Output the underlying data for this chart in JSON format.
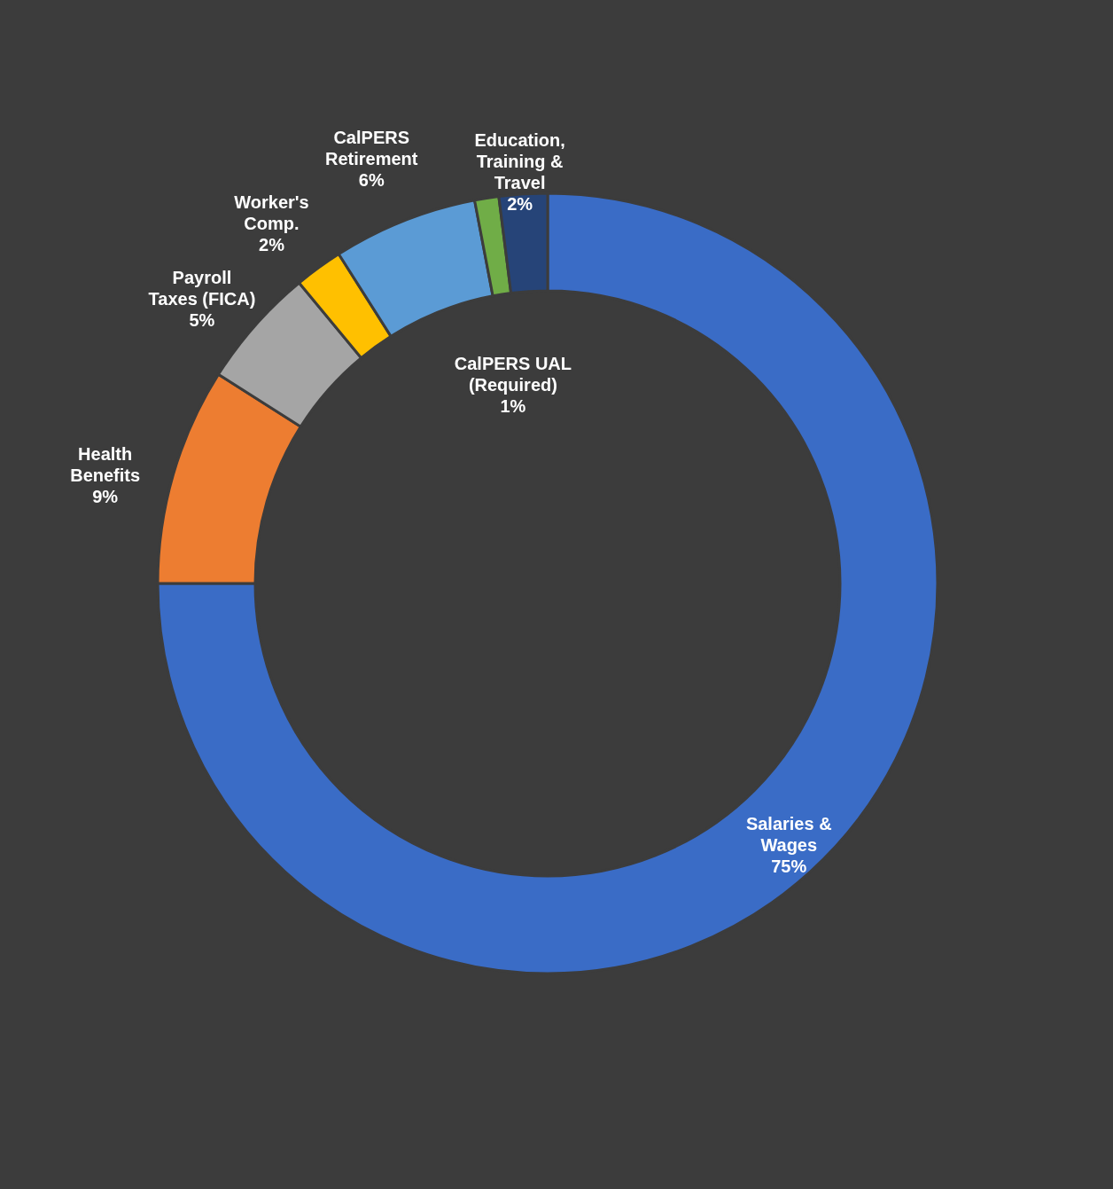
{
  "chart_data": {
    "type": "donut",
    "categories": [
      "Salaries & Wages",
      "Health Benefits",
      "Payroll Taxes (FICA)",
      "Worker's Comp.",
      "CalPERS Retirement",
      "CalPERS UAL (Required)",
      "Education, Training & Travel"
    ],
    "values": [
      75,
      9,
      5,
      2,
      6,
      1,
      2
    ],
    "value_labels": [
      "75%",
      "9%",
      "5%",
      "2%",
      "6%",
      "1%",
      "2%"
    ],
    "colors": [
      "#3a6cc6",
      "#ed7d31",
      "#a5a5a5",
      "#ffc000",
      "#5b9bd5",
      "#70ad47",
      "#264478"
    ],
    "legend": false
  }
}
